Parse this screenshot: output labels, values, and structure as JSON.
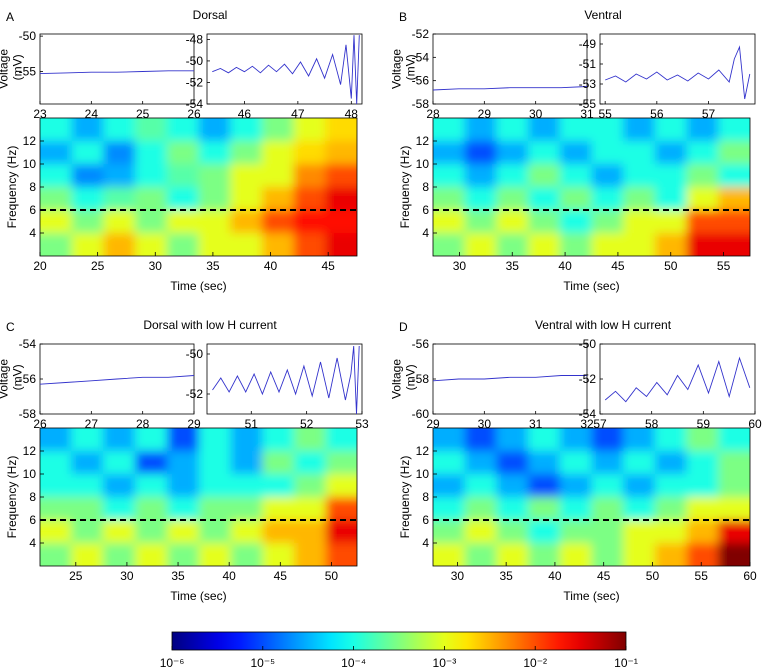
{
  "chart_data": [
    {
      "label": "A",
      "title": "Dorsal",
      "charts": [
        {
          "type": "line",
          "ylabel": "Voltage (mV)",
          "color": "#3333cc",
          "xlim": [
            23,
            26
          ],
          "xticks": [
            23,
            24,
            25,
            26
          ],
          "ylim": [
            -59.6,
            -49.7
          ],
          "yticks": [
            -55,
            -50
          ],
          "x": [
            23,
            23.5,
            24,
            24.5,
            25,
            25.5,
            26
          ],
          "values": [
            -55.3,
            -55.2,
            -55.1,
            -55.1,
            -55.0,
            -54.9,
            -54.9
          ]
        },
        {
          "type": "line",
          "color": "#3333cc",
          "xlim": [
            45.3,
            48.2
          ],
          "xticks": [
            46,
            47,
            48
          ],
          "ylim": [
            -54,
            -47.5
          ],
          "yticks": [
            -54,
            -52,
            -50,
            -48
          ],
          "x": [
            45.4,
            45.55,
            45.7,
            45.85,
            46,
            46.15,
            46.3,
            46.45,
            46.6,
            46.75,
            46.9,
            47.05,
            47.2,
            47.35,
            47.5,
            47.65,
            47.8,
            47.9,
            48.0,
            48.05,
            48.1,
            48.15
          ],
          "values": [
            -51,
            -50.7,
            -51.1,
            -50.6,
            -51,
            -50.5,
            -51.1,
            -50.4,
            -51,
            -50.3,
            -51.2,
            -50.1,
            -51.4,
            -49.8,
            -51.6,
            -49.4,
            -52.2,
            -48.5,
            -53.5,
            -47.6,
            -54,
            -47.6
          ]
        },
        {
          "type": "heatmap",
          "ylabel": "Frequency (Hz)",
          "xlabel": "Time (sec)",
          "xlim": [
            20,
            47.5
          ],
          "xticks": [
            20,
            25,
            30,
            35,
            40,
            45
          ],
          "ylim": [
            2,
            14
          ],
          "yticks": [
            4,
            6,
            8,
            10,
            12
          ],
          "hline": 6,
          "x": [
            21.4,
            24.1,
            26.9,
            29.6,
            32.4,
            35.1,
            37.9,
            40.6,
            43.4,
            46.1
          ],
          "y": [
            13,
            11,
            9,
            7,
            5,
            3
          ],
          "values": [
            [
              0.0001,
              3e-05,
              0.0001,
              0.0002,
              0.0001,
              3e-05,
              0.0001,
              0.0003,
              0.001,
              0.002
            ],
            [
              3e-05,
              0.0001,
              2e-05,
              0.0001,
              0.0003,
              0.0001,
              0.0003,
              0.001,
              0.002,
              0.003
            ],
            [
              0.0001,
              2e-05,
              3e-05,
              0.0001,
              0.0002,
              0.0003,
              0.001,
              0.001,
              0.005,
              0.01
            ],
            [
              0.0003,
              0.0001,
              0.0002,
              0.0003,
              0.0001,
              0.0003,
              0.001,
              0.003,
              0.01,
              0.03
            ],
            [
              0.001,
              0.0003,
              0.001,
              0.0003,
              0.001,
              0.001,
              0.003,
              0.01,
              0.02,
              0.02
            ],
            [
              0.0003,
              0.001,
              0.003,
              0.001,
              0.0003,
              0.001,
              0.001,
              0.003,
              0.01,
              0.03
            ]
          ]
        }
      ]
    },
    {
      "label": "B",
      "title": "Ventral",
      "charts": [
        {
          "type": "line",
          "ylabel": "Voltage (mV)",
          "color": "#3333cc",
          "xlim": [
            28,
            31
          ],
          "xticks": [
            28,
            29,
            30,
            31
          ],
          "ylim": [
            -58,
            -52
          ],
          "yticks": [
            -58,
            -56,
            -54,
            -52
          ],
          "x": [
            28,
            28.5,
            29,
            29.5,
            30,
            30.5,
            31
          ],
          "values": [
            -56.8,
            -56.7,
            -56.7,
            -56.6,
            -56.6,
            -56.6,
            -56.5
          ]
        },
        {
          "type": "line",
          "color": "#3333cc",
          "xlim": [
            54.9,
            57.9
          ],
          "xticks": [
            55,
            56,
            57
          ],
          "ylim": [
            -55,
            -48
          ],
          "yticks": [
            -55,
            -53,
            -51,
            -49
          ],
          "x": [
            55,
            55.2,
            55.4,
            55.6,
            55.8,
            56,
            56.2,
            56.4,
            56.6,
            56.8,
            57,
            57.2,
            57.4,
            57.5,
            57.6,
            57.7,
            57.8
          ],
          "values": [
            -52.6,
            -52.2,
            -52.8,
            -52.0,
            -52.5,
            -51.8,
            -52.6,
            -52.1,
            -52.7,
            -51.9,
            -52.5,
            -51.6,
            -52.8,
            -50.5,
            -49.3,
            -54.5,
            -52
          ]
        },
        {
          "type": "heatmap",
          "ylabel": "Frequency (Hz)",
          "xlabel": "Time (sec)",
          "xlim": [
            27.5,
            57.5
          ],
          "xticks": [
            30,
            35,
            40,
            45,
            50,
            55
          ],
          "ylim": [
            2,
            14
          ],
          "yticks": [
            4,
            6,
            8,
            10,
            12
          ],
          "hline": 6,
          "x": [
            29,
            32,
            35,
            38,
            41,
            44,
            47,
            50,
            53,
            56
          ],
          "y": [
            13,
            11,
            9,
            7,
            5,
            3
          ],
          "values": [
            [
              0.0001,
              3e-05,
              0.0001,
              3e-05,
              0.0001,
              0.0001,
              3e-05,
              0.0001,
              3e-05,
              0.0001
            ],
            [
              3e-05,
              1e-05,
              3e-05,
              0.0001,
              3e-05,
              0.0001,
              0.0001,
              3e-05,
              0.0001,
              0.0003
            ],
            [
              0.0001,
              3e-05,
              0.0001,
              0.0003,
              0.0001,
              3e-05,
              0.0001,
              0.0001,
              0.0003,
              0.0001
            ],
            [
              0.0003,
              0.0001,
              0.0003,
              0.0001,
              0.0003,
              0.0001,
              0.0003,
              0.0001,
              0.001,
              0.003
            ],
            [
              0.001,
              0.0003,
              0.001,
              0.0003,
              0.0001,
              0.0003,
              0.001,
              0.001,
              0.01,
              0.01
            ],
            [
              0.0003,
              0.001,
              0.0003,
              0.001,
              0.0003,
              0.001,
              0.001,
              0.003,
              0.03,
              0.03
            ]
          ]
        }
      ]
    },
    {
      "label": "C",
      "title": "Dorsal with low H current",
      "charts": [
        {
          "type": "line",
          "ylabel": "Voltage (mV)",
          "color": "#3333cc",
          "xlim": [
            26,
            29
          ],
          "xticks": [
            26,
            27,
            28,
            29
          ],
          "ylim": [
            -58,
            -54
          ],
          "yticks": [
            -58,
            -56,
            -54
          ],
          "x": [
            26,
            26.5,
            27,
            27.5,
            28,
            28.5,
            29
          ],
          "values": [
            -56.3,
            -56.2,
            -56.1,
            -56.0,
            -55.9,
            -55.9,
            -55.8
          ]
        },
        {
          "type": "line",
          "color": "#3333cc",
          "xlim": [
            50.2,
            53
          ],
          "xticks": [
            51,
            52,
            53
          ],
          "ylim": [
            -53,
            -49.5
          ],
          "yticks": [
            -52,
            -50
          ],
          "x": [
            50.3,
            50.45,
            50.6,
            50.75,
            50.9,
            51.05,
            51.2,
            51.35,
            51.5,
            51.65,
            51.8,
            51.95,
            52.1,
            52.25,
            52.4,
            52.55,
            52.7,
            52.8,
            52.85,
            52.9,
            52.95
          ],
          "values": [
            -51.8,
            -51.2,
            -51.9,
            -51.1,
            -51.9,
            -51.0,
            -52.0,
            -50.9,
            -51.9,
            -50.8,
            -52.0,
            -50.6,
            -52.1,
            -50.4,
            -52.2,
            -50.2,
            -52.3,
            -51.0,
            -49.6,
            -53,
            -49.6
          ]
        },
        {
          "type": "heatmap",
          "ylabel": "Frequency (Hz)",
          "xlabel": "Time (sec)",
          "xlim": [
            21.5,
            52.5
          ],
          "xticks": [
            25,
            30,
            35,
            40,
            45,
            50
          ],
          "ylim": [
            2,
            14
          ],
          "yticks": [
            4,
            6,
            8,
            10,
            12
          ],
          "hline": 6,
          "x": [
            23,
            26.1,
            29.2,
            32.4,
            35.5,
            38.6,
            41.7,
            44.8,
            47.9,
            51
          ],
          "y": [
            13,
            11,
            9,
            7,
            5,
            3
          ],
          "values": [
            [
              3e-05,
              0.0001,
              3e-05,
              0.0001,
              1e-05,
              0.0001,
              3e-05,
              0.0001,
              0.0003,
              0.0001
            ],
            [
              0.0001,
              3e-05,
              0.0001,
              1e-05,
              3e-05,
              0.0001,
              3e-05,
              0.0003,
              0.0001,
              0.0003
            ],
            [
              0.0001,
              0.0001,
              3e-05,
              0.0001,
              3e-05,
              0.0001,
              0.0001,
              0.0001,
              0.0003,
              0.001
            ],
            [
              0.0003,
              0.0003,
              0.0001,
              0.0003,
              0.0001,
              0.0003,
              0.0003,
              0.001,
              0.001,
              0.01
            ],
            [
              0.001,
              0.0003,
              0.001,
              0.0003,
              0.001,
              0.0003,
              0.001,
              0.003,
              0.003,
              0.03
            ],
            [
              0.0003,
              0.001,
              0.0003,
              0.001,
              0.0003,
              0.001,
              0.0003,
              0.001,
              0.003,
              0.01
            ]
          ]
        }
      ]
    },
    {
      "label": "D",
      "title": "Ventral with low H current",
      "charts": [
        {
          "type": "line",
          "ylabel": "Voltage (mV)",
          "color": "#3333cc",
          "xlim": [
            29,
            32
          ],
          "xticks": [
            29,
            30,
            31,
            32
          ],
          "ylim": [
            -60,
            -56
          ],
          "yticks": [
            -60,
            -58,
            -56
          ],
          "x": [
            29,
            29.5,
            30,
            30.5,
            31,
            31.5,
            32
          ],
          "values": [
            -58.1,
            -58.0,
            -58.0,
            -57.9,
            -57.9,
            -57.8,
            -57.8
          ]
        },
        {
          "type": "line",
          "color": "#3333cc",
          "xlim": [
            57,
            60
          ],
          "xticks": [
            57,
            58,
            59,
            60
          ],
          "ylim": [
            -54,
            -50
          ],
          "yticks": [
            -54,
            -52,
            -50
          ],
          "x": [
            57.1,
            57.3,
            57.5,
            57.7,
            57.9,
            58.1,
            58.3,
            58.5,
            58.7,
            58.9,
            59.1,
            59.3,
            59.5,
            59.7,
            59.9
          ],
          "values": [
            -53.2,
            -52.7,
            -53.3,
            -52.5,
            -53.0,
            -52.2,
            -52.9,
            -51.8,
            -52.6,
            -51.2,
            -52.8,
            -51.0,
            -53.0,
            -50.8,
            -52.5
          ]
        },
        {
          "type": "heatmap",
          "ylabel": "Frequency (Hz)",
          "xlabel": "Time (sec)",
          "xlim": [
            27.5,
            60
          ],
          "xticks": [
            30,
            35,
            40,
            45,
            50,
            55,
            60
          ],
          "ylim": [
            2,
            14
          ],
          "yticks": [
            4,
            6,
            8,
            10,
            12
          ],
          "hline": 6,
          "x": [
            29.1,
            32.4,
            35.6,
            38.9,
            42.1,
            45.4,
            48.6,
            51.9,
            55.1,
            58.4
          ],
          "y": [
            13,
            11,
            9,
            7,
            5,
            3
          ],
          "values": [
            [
              3e-05,
              1e-05,
              3e-05,
              0.0001,
              3e-05,
              1e-05,
              3e-05,
              0.0001,
              0.0003,
              0.0001
            ],
            [
              0.0001,
              3e-05,
              1e-05,
              3e-05,
              0.0001,
              3e-05,
              0.0001,
              3e-05,
              0.0001,
              0.0003
            ],
            [
              3e-05,
              0.0001,
              3e-05,
              1e-05,
              3e-05,
              0.0001,
              3e-05,
              0.0001,
              0.0001,
              0.0003
            ],
            [
              0.0001,
              0.0003,
              0.0001,
              0.0003,
              0.0001,
              0.0003,
              0.0001,
              0.0003,
              0.001,
              0.001
            ],
            [
              0.0003,
              0.001,
              0.0003,
              0.0001,
              0.0003,
              0.0003,
              0.001,
              0.001,
              0.003,
              0.03
            ],
            [
              0.001,
              0.0003,
              0.001,
              0.0003,
              0.001,
              0.0003,
              0.001,
              0.003,
              0.01,
              0.1
            ]
          ]
        }
      ]
    },
    {
      "type": "colorbar",
      "colormap": "jet",
      "log_scale": true,
      "lim": [
        1e-06,
        0.1
      ],
      "ticks": [
        {
          "value": 1e-06,
          "label": "10⁻⁶"
        },
        {
          "value": 1e-05,
          "label": "10⁻⁵"
        },
        {
          "value": 0.0001,
          "label": "10⁻⁴"
        },
        {
          "value": 0.001,
          "label": "10⁻³"
        },
        {
          "value": 0.01,
          "label": "10⁻²"
        },
        {
          "value": 0.1,
          "label": "10⁻¹"
        }
      ]
    }
  ]
}
